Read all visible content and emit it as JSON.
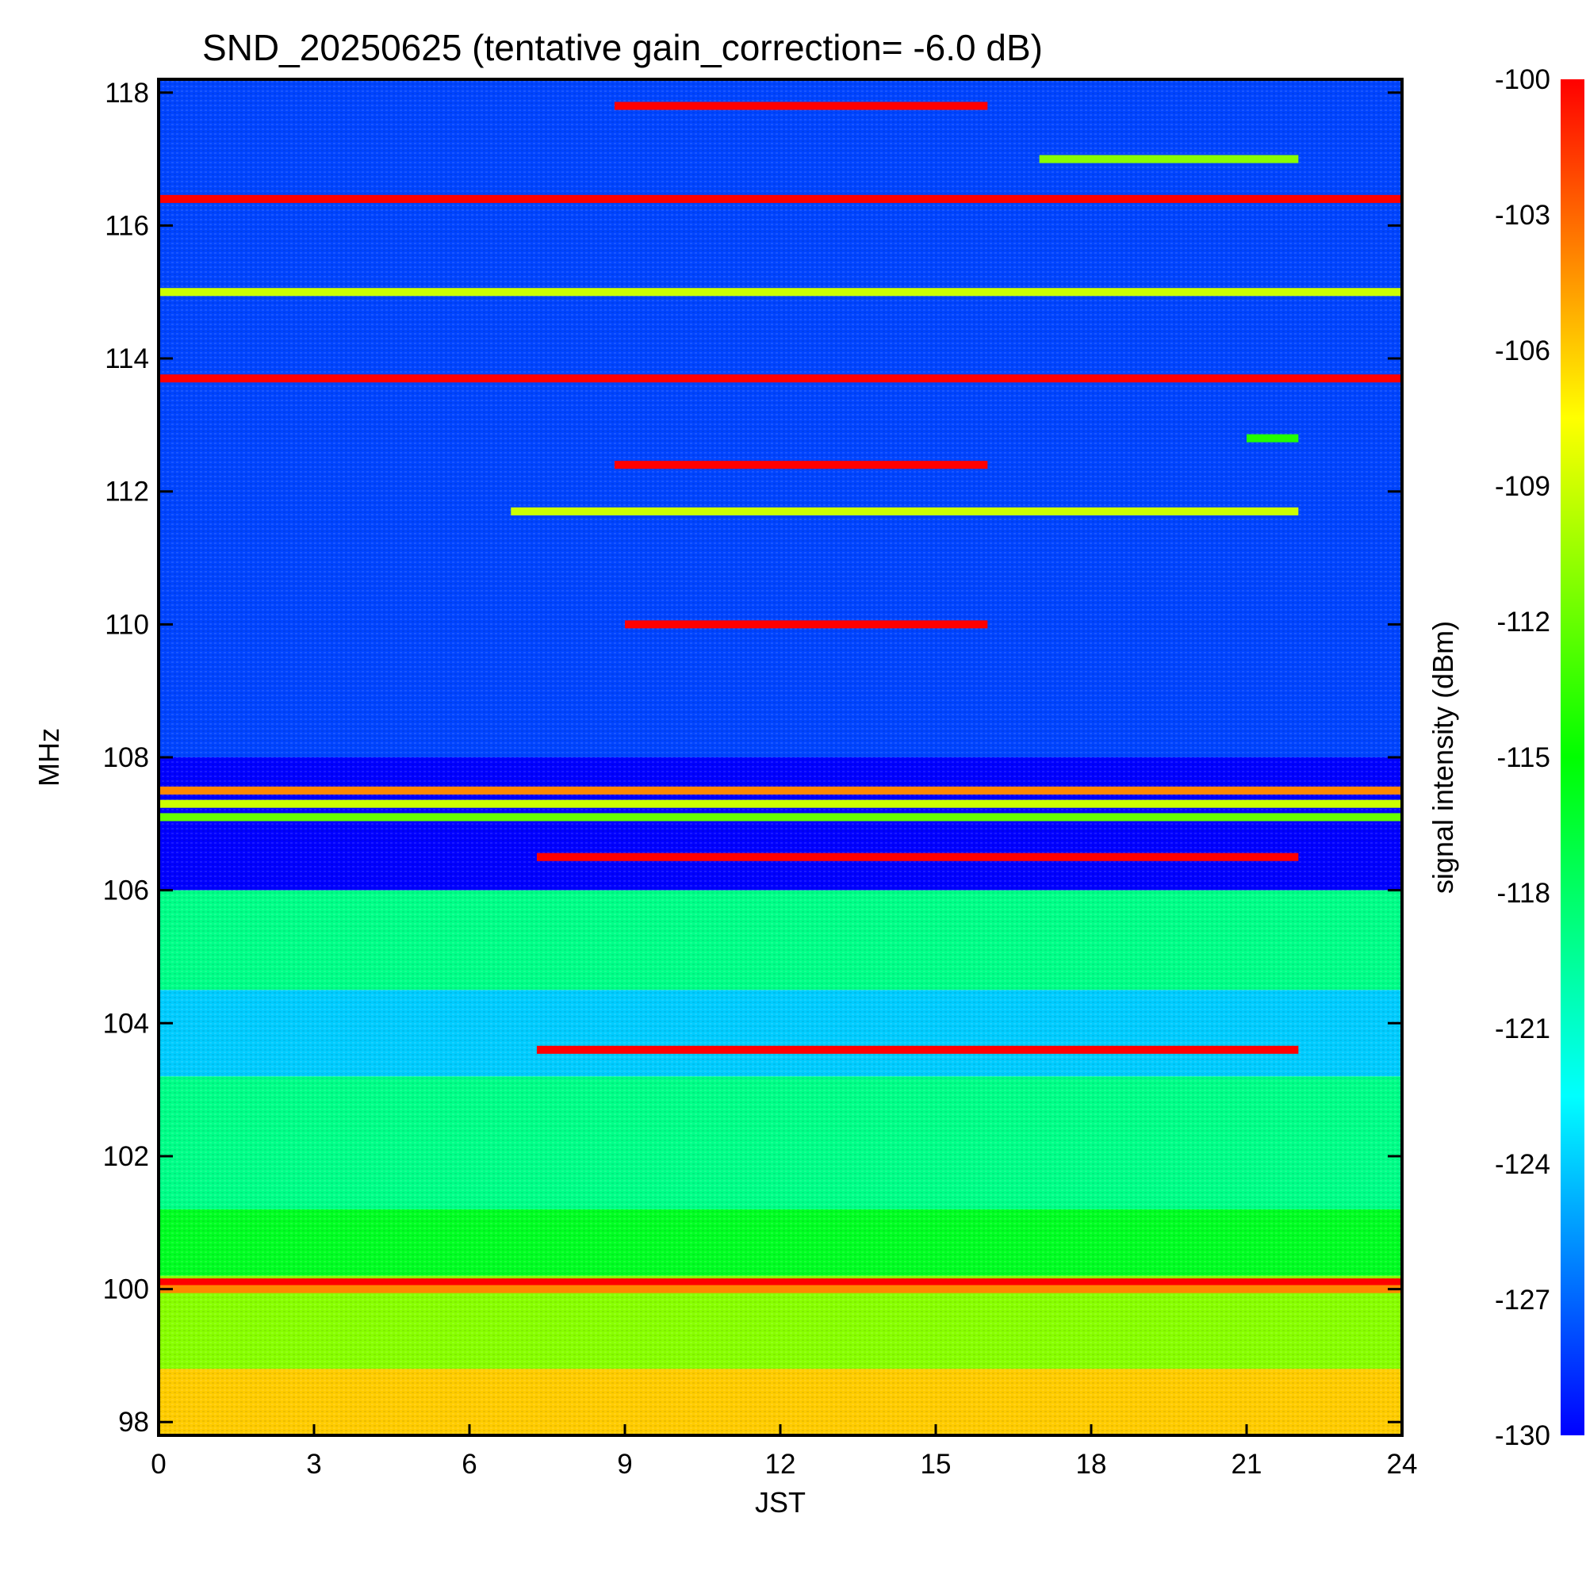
{
  "chart_data": {
    "type": "heatmap",
    "title": "SND_20250625 (tentative gain_correction= -6.0 dB)",
    "xlabel": "JST",
    "ylabel": "MHz",
    "xlim": [
      0,
      24
    ],
    "ylim": [
      97.8,
      118.2
    ],
    "xticks": [
      "0",
      "3",
      "6",
      "9",
      "12",
      "15",
      "18",
      "21",
      "24"
    ],
    "yticks": [
      "98",
      "100",
      "102",
      "104",
      "106",
      "108",
      "110",
      "112",
      "114",
      "116",
      "118"
    ],
    "colorbar": {
      "label": "signal intensity (dBm)",
      "range": [
        -130,
        -100
      ],
      "ticks": [
        "-100",
        "-103",
        "-106",
        "-109",
        "-112",
        "-115",
        "-118",
        "-121",
        "-124",
        "-127",
        "-130"
      ],
      "colormap": [
        "#0000ff",
        "#00ffff",
        "#00ff00",
        "#ffff00",
        "#ff0000"
      ]
    },
    "background_regions": [
      {
        "freq": [
          108.0,
          118.2
        ],
        "time": [
          0,
          24
        ],
        "dbm": -128
      },
      {
        "freq": [
          106.0,
          108.0
        ],
        "time": [
          0,
          24
        ],
        "dbm": -130
      },
      {
        "freq": [
          104.5,
          106.0
        ],
        "time": [
          0,
          24
        ],
        "dbm": -119
      },
      {
        "freq": [
          103.2,
          104.5
        ],
        "time": [
          0,
          24
        ],
        "dbm": -124
      },
      {
        "freq": [
          101.2,
          103.2
        ],
        "time": [
          0,
          24
        ],
        "dbm": -119
      },
      {
        "freq": [
          100.2,
          101.2
        ],
        "time": [
          0,
          24
        ],
        "dbm": -116
      },
      {
        "freq": [
          98.8,
          100.2
        ],
        "time": [
          0,
          24
        ],
        "dbm": -111
      },
      {
        "freq": [
          97.8,
          98.8
        ],
        "time": [
          0,
          24
        ],
        "dbm": -106
      }
    ],
    "signal_bands": [
      {
        "freq": 117.8,
        "time": [
          8.8,
          16.0
        ],
        "dbm": -100
      },
      {
        "freq": 117.0,
        "time": [
          17.0,
          22.0
        ],
        "dbm": -111
      },
      {
        "freq": 116.4,
        "time": [
          0,
          24
        ],
        "dbm": -100
      },
      {
        "freq": 115.0,
        "time": [
          0,
          24
        ],
        "dbm": -109
      },
      {
        "freq": 113.7,
        "time": [
          0,
          24
        ],
        "dbm": -100
      },
      {
        "freq": 112.8,
        "time": [
          21.0,
          22.0
        ],
        "dbm": -114
      },
      {
        "freq": 112.4,
        "time": [
          8.8,
          16.0
        ],
        "dbm": -100
      },
      {
        "freq": 111.7,
        "time": [
          6.8,
          22.0
        ],
        "dbm": -109
      },
      {
        "freq": 110.0,
        "time": [
          9.0,
          16.0
        ],
        "dbm": -100
      },
      {
        "freq": 107.5,
        "time": [
          0,
          24
        ],
        "dbm": -104
      },
      {
        "freq": 107.3,
        "time": [
          0,
          24
        ],
        "dbm": -109
      },
      {
        "freq": 107.1,
        "time": [
          0,
          24
        ],
        "dbm": -112
      },
      {
        "freq": 106.5,
        "time": [
          7.3,
          22.0
        ],
        "dbm": -100
      },
      {
        "freq": 103.6,
        "time": [
          7.3,
          22.0
        ],
        "dbm": -100
      },
      {
        "freq": 100.1,
        "time": [
          0,
          24
        ],
        "dbm": -100
      },
      {
        "freq": 100.0,
        "time": [
          0,
          24
        ],
        "dbm": -104
      }
    ]
  }
}
